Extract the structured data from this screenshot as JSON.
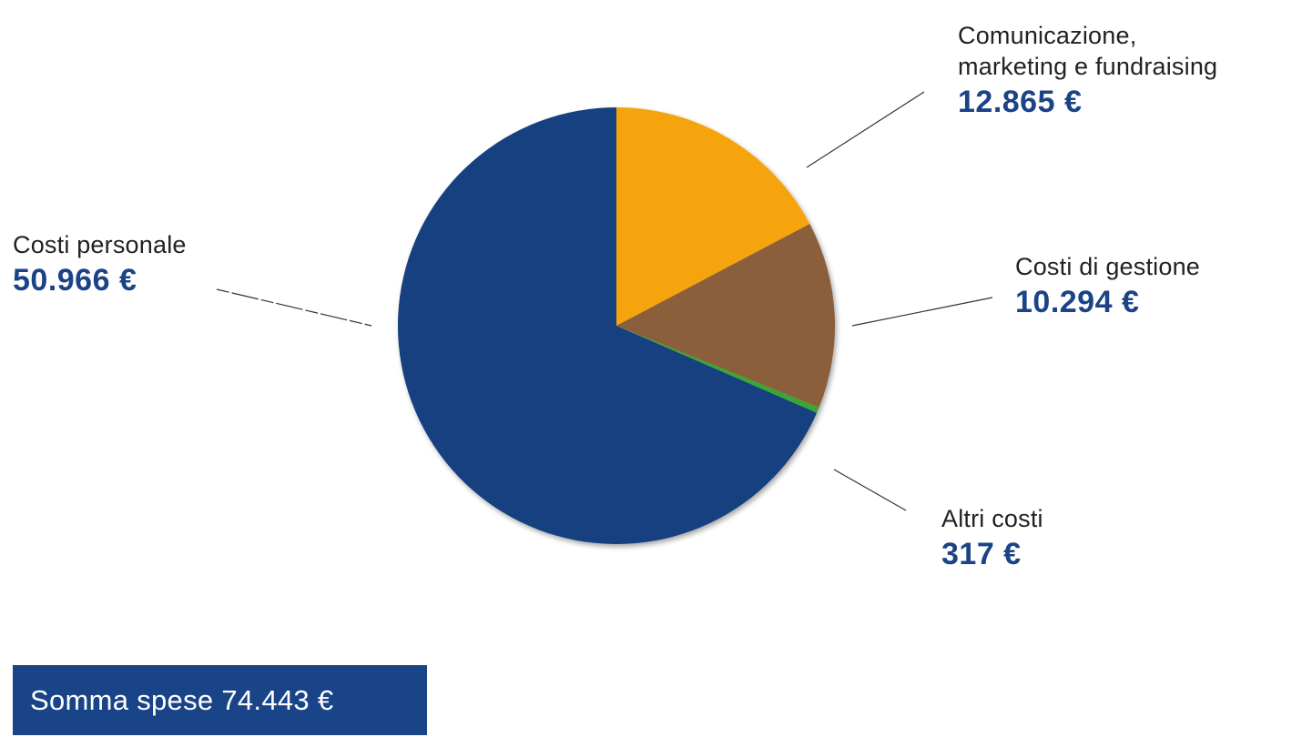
{
  "chart_data": {
    "type": "pie",
    "title": "",
    "slices": [
      {
        "label_lines": [
          "Comunicazione,",
          "marketing e fundraising"
        ],
        "value": 12865,
        "value_label": "12.865 €",
        "color": "#f5a40a"
      },
      {
        "label_lines": [
          "Costi di gestione"
        ],
        "value": 10294,
        "value_label": "10.294 €",
        "color": "#8b5f3a"
      },
      {
        "label_lines": [
          "Altri costi"
        ],
        "value": 317,
        "value_label": "317 €",
        "color": "#3aa636"
      },
      {
        "label_lines": [
          "Costi personale"
        ],
        "value": 50966,
        "value_label": "50.966 €",
        "color": "#17417f"
      }
    ],
    "start": "12 o'clock",
    "direction": "clockwise",
    "legend": "none"
  },
  "total": {
    "text": "Somma spese 74.443 €"
  }
}
